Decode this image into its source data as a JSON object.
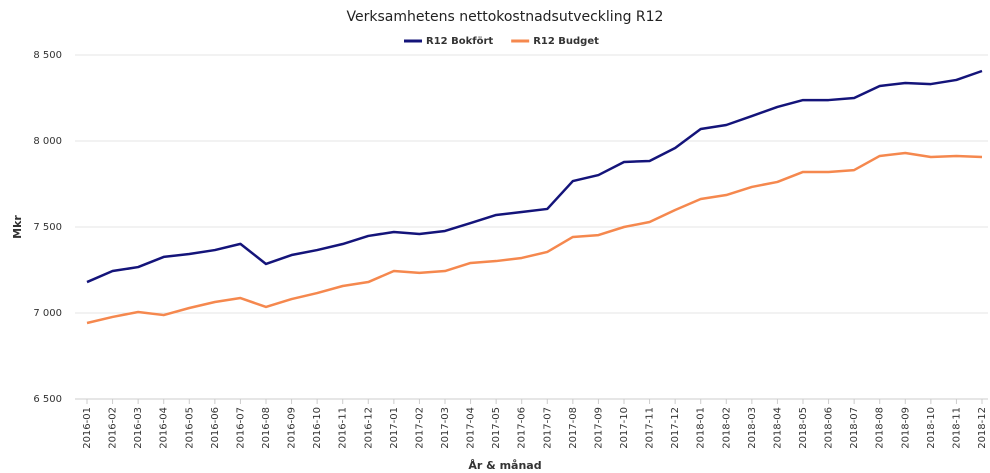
{
  "chart_data": {
    "type": "line",
    "title": "Verksamhetens nettokostnadsutveckling R12",
    "xlabel": "År & månad",
    "ylabel": "Mkr",
    "categories": [
      "2016-01",
      "2016-02",
      "2016-03",
      "2016-04",
      "2016-05",
      "2016-06",
      "2016-07",
      "2016-08",
      "2016-09",
      "2016-10",
      "2016-11",
      "2016-12",
      "2017-01",
      "2017-02",
      "2017-03",
      "2017-04",
      "2017-05",
      "2017-06",
      "2017-07",
      "2017-08",
      "2017-09",
      "2017-10",
      "2017-11",
      "2017-12",
      "2018-01",
      "2018-02",
      "2018-03",
      "2018-04",
      "2018-05",
      "2018-06",
      "2018-07",
      "2018-08",
      "2018-09",
      "2018-10",
      "2018-11",
      "2018-12"
    ],
    "series": [
      {
        "name": "R12 Bokfört",
        "color": "#14147a",
        "values": [
          7180,
          7244,
          7267,
          7326,
          7343,
          7366,
          7402,
          7285,
          7337,
          7366,
          7401,
          7448,
          7471,
          7459,
          7477,
          7523,
          7570,
          7587,
          7605,
          7767,
          7802,
          7878,
          7884,
          7959,
          8070,
          8093,
          8145,
          8198,
          8238,
          8238,
          8250,
          8320,
          8337,
          8331,
          8355,
          8407
        ]
      },
      {
        "name": "R12 Budget",
        "color": "#f5884e",
        "values": [
          6942,
          6977,
          7006,
          6988,
          7029,
          7064,
          7087,
          7035,
          7081,
          7116,
          7157,
          7180,
          7244,
          7233,
          7244,
          7291,
          7302,
          7320,
          7355,
          7442,
          7453,
          7500,
          7529,
          7599,
          7663,
          7686,
          7733,
          7762,
          7820,
          7820,
          7831,
          7913,
          7930,
          7907,
          7913,
          7907
        ]
      }
    ],
    "ylim": [
      6500,
      8500
    ],
    "yticks": [
      {
        "value": 6500,
        "label": "6 500"
      },
      {
        "value": 7000,
        "label": "7 000"
      },
      {
        "value": 7500,
        "label": "7 500"
      },
      {
        "value": 8000,
        "label": "8 000"
      },
      {
        "value": 8500,
        "label": "8 500"
      }
    ],
    "grid": true,
    "legend": "top"
  }
}
